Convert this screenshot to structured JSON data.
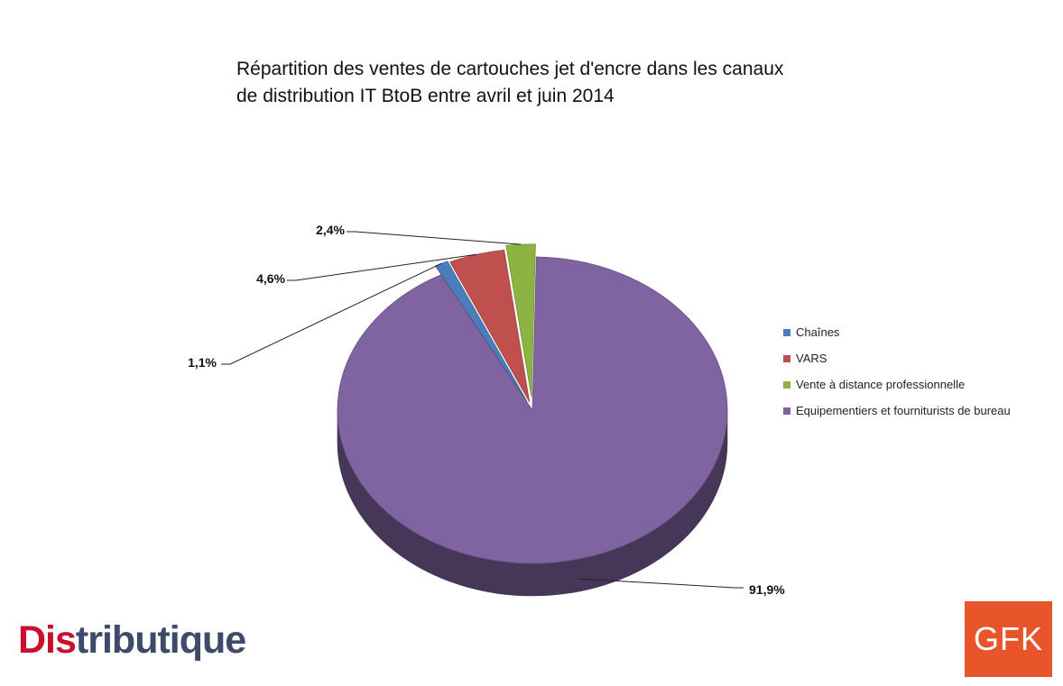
{
  "chart_data": {
    "type": "pie",
    "title_lines": [
      "Répartition des ventes de cartouches jet d'encre dans les canaux",
      "de distribution IT BtoB entre avril et juin 2014"
    ],
    "categories": [
      "Chaînes",
      "VARS",
      "Vente à distance professionnelle",
      "Equipementiers et fourniturists de bureau"
    ],
    "values": [
      1.1,
      4.6,
      2.4,
      91.9
    ],
    "data_labels": [
      "1,1%",
      "4,6%",
      "2,4%",
      "91,9%"
    ],
    "colors": [
      "#4a7ebb",
      "#c0504d",
      "#8db443",
      "#8064a2"
    ],
    "legend_position": "right"
  },
  "logos": {
    "distributique_red": "Dis",
    "distributique_rest": "tributique",
    "gfk": "GFK"
  }
}
